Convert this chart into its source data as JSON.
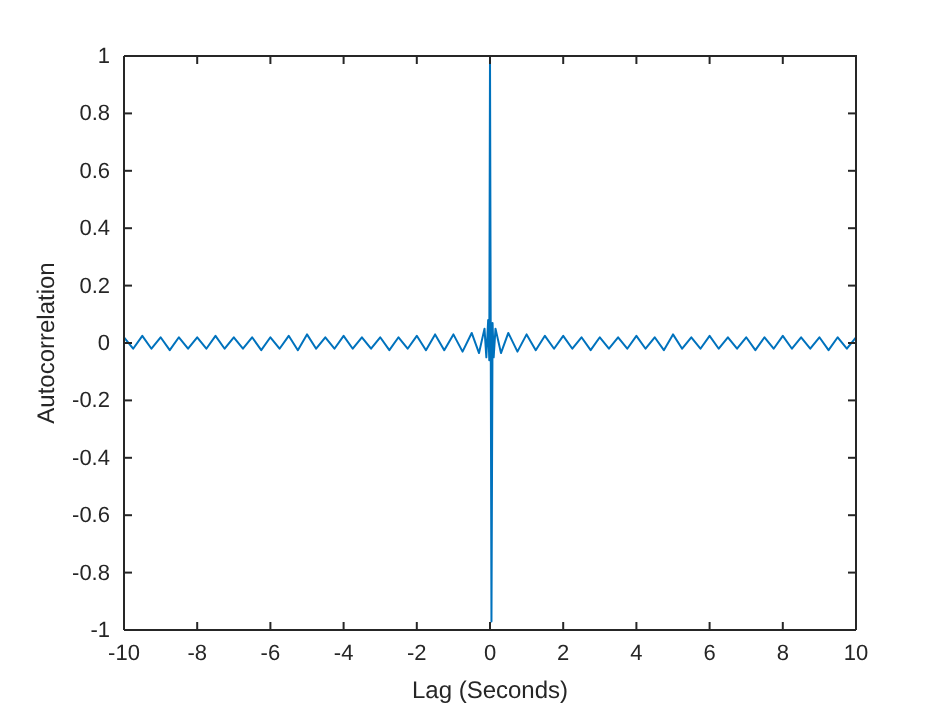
{
  "chart_data": {
    "type": "line",
    "xlabel": "Lag (Seconds)",
    "ylabel": "Autocorrelation",
    "xlim": [
      -10,
      10
    ],
    "ylim": [
      -1,
      1
    ],
    "xticks": [
      -10,
      -8,
      -6,
      -4,
      -2,
      0,
      2,
      4,
      6,
      8,
      10
    ],
    "yticks": [
      -1,
      -0.8,
      -0.6,
      -0.4,
      -0.2,
      0,
      0.2,
      0.4,
      0.6,
      0.8,
      1
    ],
    "grid": false,
    "line_style": "solid",
    "marker": "none",
    "series": [
      {
        "color": "#0072bd",
        "x": [
          -10,
          -9.75,
          -9.5,
          -9.25,
          -9,
          -8.75,
          -8.5,
          -8.25,
          -8,
          -7.75,
          -7.5,
          -7.25,
          -7,
          -6.75,
          -6.5,
          -6.25,
          -6,
          -5.75,
          -5.5,
          -5.25,
          -5,
          -4.75,
          -4.5,
          -4.25,
          -4,
          -3.75,
          -3.5,
          -3.25,
          -3,
          -2.75,
          -2.5,
          -2.25,
          -2,
          -1.75,
          -1.5,
          -1.25,
          -1,
          -0.75,
          -0.5,
          -0.3,
          -0.15,
          -0.1,
          -0.05,
          -0.02,
          0,
          0.04,
          0.07,
          0.1,
          0.15,
          0.3,
          0.5,
          0.75,
          1,
          1.25,
          1.5,
          1.75,
          2,
          2.25,
          2.5,
          2.75,
          3,
          3.25,
          3.5,
          3.75,
          4,
          4.25,
          4.5,
          4.75,
          5,
          5.25,
          5.5,
          5.75,
          6,
          6.25,
          6.5,
          6.75,
          7,
          7.25,
          7.5,
          7.75,
          8,
          8.25,
          8.5,
          8.75,
          9,
          9.25,
          9.5,
          9.75,
          10
        ],
        "values": [
          0.02,
          -0.02,
          0.025,
          -0.02,
          0.02,
          -0.025,
          0.02,
          -0.02,
          0.02,
          -0.02,
          0.025,
          -0.02,
          0.02,
          -0.02,
          0.02,
          -0.025,
          0.02,
          -0.02,
          0.025,
          -0.025,
          0.03,
          -0.02,
          0.02,
          -0.02,
          0.025,
          -0.02,
          0.02,
          -0.02,
          0.02,
          -0.025,
          0.02,
          -0.02,
          0.025,
          -0.025,
          0.03,
          -0.025,
          0.03,
          -0.03,
          0.035,
          -0.035,
          0.05,
          -0.05,
          0.08,
          -0.06,
          1,
          -0.97,
          0.07,
          -0.05,
          0.05,
          -0.035,
          0.035,
          -0.03,
          0.03,
          -0.025,
          0.025,
          -0.02,
          0.025,
          -0.02,
          0.02,
          -0.025,
          0.02,
          -0.02,
          0.02,
          -0.02,
          0.025,
          -0.02,
          0.02,
          -0.025,
          0.03,
          -0.02,
          0.02,
          -0.02,
          0.025,
          -0.02,
          0.02,
          -0.02,
          0.02,
          -0.025,
          0.02,
          -0.02,
          0.025,
          -0.02,
          0.02,
          -0.02,
          0.02,
          -0.025,
          0.02,
          -0.02,
          0.02
        ]
      }
    ]
  }
}
